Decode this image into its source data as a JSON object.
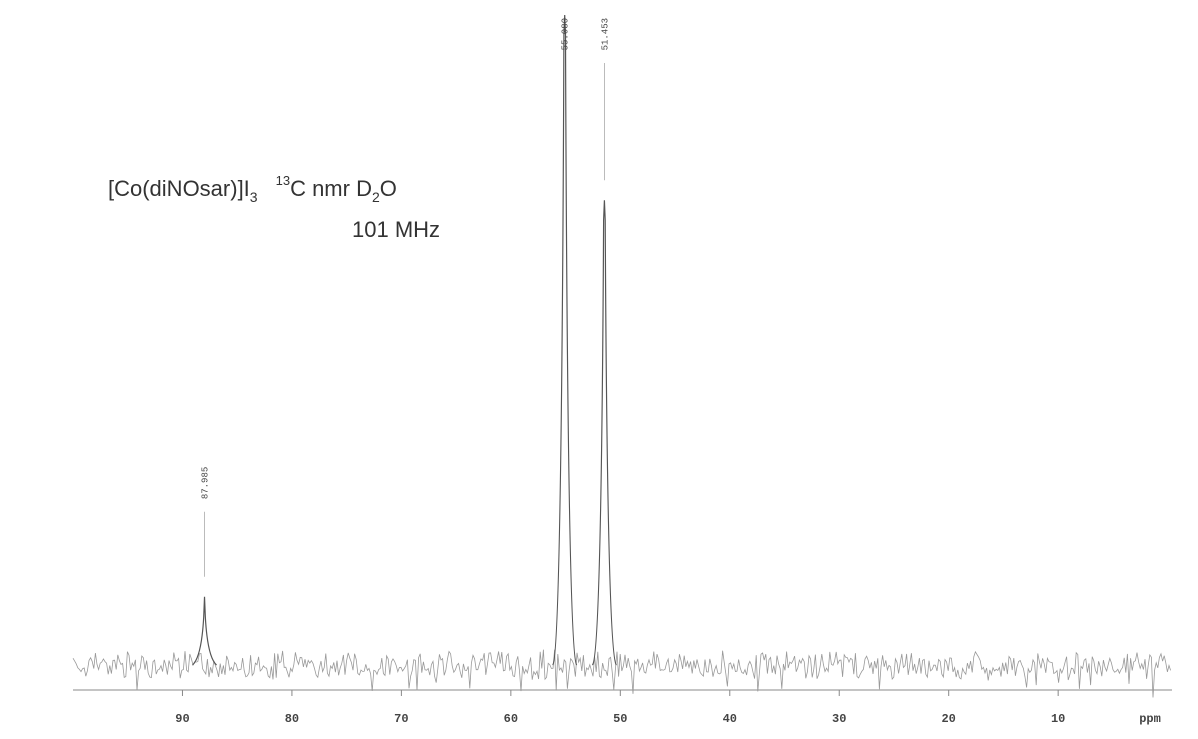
{
  "chart_data": {
    "type": "spectrum",
    "title": {
      "compound": "[Co(diNOsar)]I",
      "compound_sub": "3",
      "isotope": "13",
      "method": "C nmr D",
      "solvent_sub": "2",
      "solvent_end": "O"
    },
    "subtitle": "101 MHz",
    "x_label": "ppm",
    "xlim": [
      100,
      -0.4
    ],
    "xticks": [
      90,
      80,
      70,
      60,
      50,
      40,
      30,
      20,
      10
    ],
    "color": "#555555",
    "peaks": {
      "x": [
        87.985,
        55.08,
        51.453
      ],
      "value_labels": [
        "87.985",
        "55.080",
        "51.453"
      ],
      "values": [
        10.5,
        100,
        71.5
      ]
    }
  }
}
